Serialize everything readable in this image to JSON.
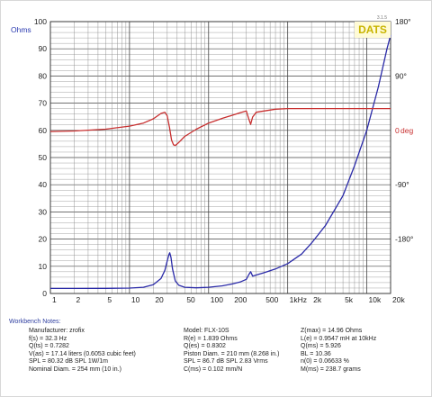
{
  "chart_data": {
    "type": "line",
    "title": "",
    "xlabel": "",
    "ylabel": "Ohms",
    "y2label": "deg",
    "x_scale": "log",
    "xlim": [
      1,
      20000
    ],
    "ylim": [
      0,
      100
    ],
    "y2lim": [
      -270,
      180
    ],
    "x_tick_labels": [
      {
        "value": 1,
        "label": "1"
      },
      {
        "value": 2,
        "label": "2"
      },
      {
        "value": 5,
        "label": "5"
      },
      {
        "value": 10,
        "label": "10"
      },
      {
        "value": 20,
        "label": "20"
      },
      {
        "value": 50,
        "label": "50"
      },
      {
        "value": 100,
        "label": "100"
      },
      {
        "value": 200,
        "label": "200"
      },
      {
        "value": 500,
        "label": "500"
      },
      {
        "value": 1000,
        "label": "1kHz"
      },
      {
        "value": 2000,
        "label": "2k"
      },
      {
        "value": 5000,
        "label": "5k"
      },
      {
        "value": 10000,
        "label": "10k"
      },
      {
        "value": 20000,
        "label": "20k"
      }
    ],
    "y_tick_labels": [
      "0",
      "10",
      "20",
      "30",
      "40",
      "50",
      "60",
      "70",
      "80",
      "90",
      "100"
    ],
    "y2_tick_labels": [
      {
        "value": 180,
        "label": "180°"
      },
      {
        "value": 90,
        "label": "90°"
      },
      {
        "value": 0,
        "label": "0"
      },
      {
        "value": -90,
        "label": "-90°"
      },
      {
        "value": -180,
        "label": "-180°"
      }
    ],
    "y2_zero_suffix": "deg",
    "grid": true,
    "series": [
      {
        "name": "",
        "role": "impedance",
        "axis": "left",
        "color": "#2a2aa8",
        "x": [
          1,
          2,
          5,
          10,
          15,
          20,
          25,
          28,
          30,
          31.5,
          32.3,
          33.5,
          35,
          38,
          42,
          50,
          70,
          100,
          150,
          200,
          250,
          300,
          320,
          340,
          360,
          400,
          500,
          700,
          1000,
          1500,
          2000,
          3000,
          5000,
          7000,
          10000,
          14000,
          18000,
          20000
        ],
        "y": [
          1.84,
          1.85,
          1.9,
          2.0,
          2.3,
          3.2,
          5.5,
          8.5,
          12.0,
          14.3,
          14.96,
          13.2,
          9.0,
          4.6,
          3.0,
          2.3,
          2.1,
          2.3,
          2.8,
          3.5,
          4.2,
          5.2,
          6.8,
          8.0,
          6.4,
          6.8,
          7.6,
          9.0,
          11.0,
          14.5,
          18.5,
          25.0,
          36.0,
          47.0,
          60.0,
          76.0,
          90.0,
          95.0
        ]
      },
      {
        "name": "",
        "role": "phase",
        "axis": "right",
        "color": "#c83030",
        "x": [
          1,
          2,
          5,
          10,
          15,
          20,
          25,
          28,
          30,
          32,
          34,
          36,
          38,
          42,
          50,
          70,
          100,
          150,
          200,
          250,
          300,
          320,
          340,
          360,
          400,
          500,
          700,
          1000,
          2000,
          5000,
          10000,
          20000
        ],
        "y": [
          -2,
          -1,
          2,
          7,
          12,
          19,
          28,
          30,
          24,
          5,
          -16,
          -24,
          -25,
          -20,
          -10,
          2,
          12,
          20,
          25,
          29,
          32,
          20,
          10,
          22,
          30,
          32,
          35,
          36,
          36,
          36,
          36,
          36
        ]
      }
    ],
    "annotation": "DATS",
    "version_label": "3.1.5"
  },
  "notes": {
    "title": "Workbench Notes:",
    "col1": [
      "Manufacturer: zrofix",
      "f(s) = 32.3 Hz",
      "Q(ts) = 0.7282",
      "V(as) = 17.14 liters  (0.6053 cubic feet)",
      "SPL = 80.32 dB SPL 1W/1m",
      "Nominal Diam. = 254 mm (10 in.)"
    ],
    "col2": [
      "Model: FLX-10S",
      "R(e) = 1.839 Ohms",
      "Q(es) = 0.8302",
      "Piston Diam. = 210 mm (8.268 in.)",
      "SPL = 86.7 dB SPL 2.83 Vrms",
      "C(ms) = 0.102 mm/N"
    ],
    "col3": [
      "Z(max) = 14.96 Ohms",
      "L(e) = 0.9547 mH at 10kHz",
      "Q(ms) = 5.926",
      "BL = 10.36",
      "n(0) = 0.06633 %",
      "M(ms) = 238.7 grams"
    ]
  },
  "colors": {
    "ohms_label": "#2a3ab0",
    "deg_label": "#c83030",
    "dats_badge_bg": "#fffbd6",
    "dats_badge_text": "#c8b400",
    "grid_major": "#444444",
    "grid_minor": "#8a8a8a"
  }
}
